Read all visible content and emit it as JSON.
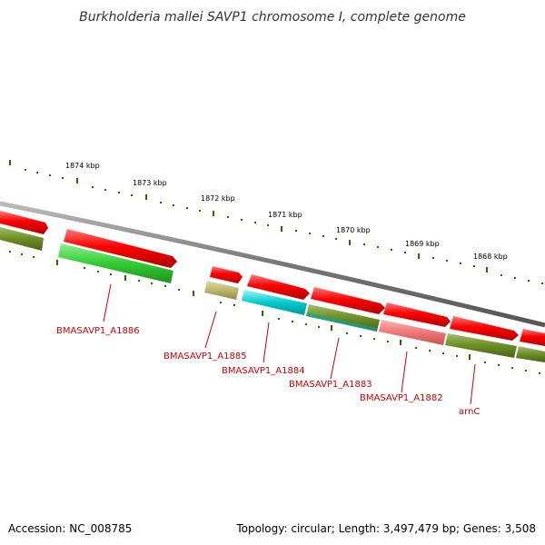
{
  "title": "Burkholderia mallei SAVP1 chromosome I, complete genome",
  "footer": {
    "accession": "Accession: NC_008785",
    "summary": "Topology: circular; Length: 3,497,479 bp; Genes: 3,508"
  },
  "tick_labels": [
    "1874 kbp",
    "1873 kbp",
    "1872 kbp",
    "1871 kbp",
    "1870 kbp",
    "1869 kbp",
    "1868 kbp"
  ],
  "gene_labels": [
    "BMASAVP1_A1886",
    "BMASAVP1_A1885",
    "BMASAVP1_A1884",
    "BMASAVP1_A1883",
    "BMASAVP1_A1882",
    "arnC"
  ],
  "colors": {
    "backbone": "#888888",
    "cds_arrow": "#e00000",
    "cog_green_bright": "#33cc33",
    "cog_olive": "#6b8e23",
    "cog_khaki": "#bdb76b",
    "cog_cyan": "#00cccc",
    "cog_pink": "#ee7777",
    "gc_tick": "#336600",
    "label_red": "#cc0000"
  }
}
